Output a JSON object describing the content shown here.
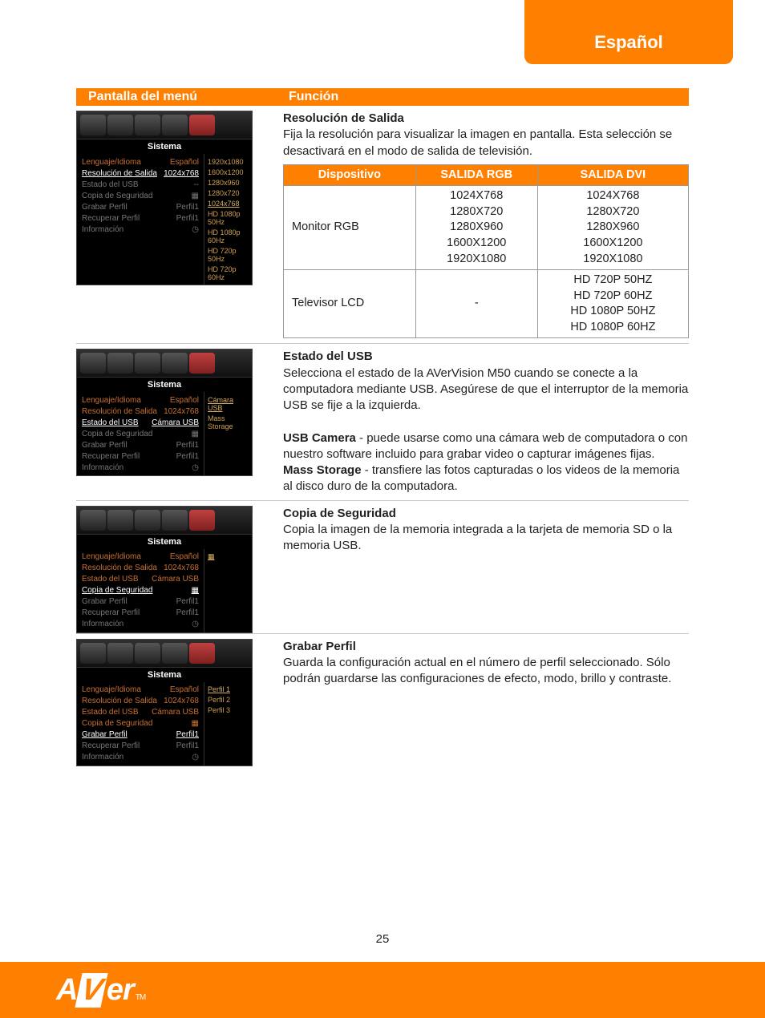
{
  "topTab": "Español",
  "header": {
    "left": "Pantalla del menú",
    "right": "Función"
  },
  "pageNumber": "25",
  "logo": {
    "a": "A",
    "v": "V",
    "er": "er",
    "tm": "TM"
  },
  "toolbarTitle": "Sistema",
  "menuItems": {
    "lang": {
      "label": "Lenguaje/Idioma",
      "value": "Español"
    },
    "res": {
      "label": "Resolución de Salida",
      "value": "1024x768"
    },
    "usb": {
      "label": "Estado del USB",
      "value_dash": "--",
      "value_cam": "Cámara USB"
    },
    "backup": {
      "label": "Copia de Seguridad",
      "icon": "▦"
    },
    "save": {
      "label": "Grabar Perfil",
      "value": "Perfil1"
    },
    "recall": {
      "label": "Recuperar Perfil",
      "value": "Perfil1"
    },
    "info": {
      "label": "Información",
      "value": "◷"
    }
  },
  "sublists": {
    "resolutions": [
      "1920x1080",
      "1600x1200",
      "1280x960",
      "1280x720",
      "1024x768",
      "HD 1080p 50Hz",
      "HD 1080p 60Hz",
      "HD 720p  50Hz",
      "HD 720p  60Hz"
    ],
    "usb": [
      "Cámara USB",
      "Mass Storage"
    ],
    "backup": [
      "▦",
      ""
    ],
    "profiles": [
      "Perfil 1",
      "Perfil 2",
      "Perfil 3"
    ]
  },
  "descriptions": {
    "res": {
      "title": "Resolución de Salida",
      "body": "Fija la resolución para visualizar la imagen en pantalla. Esta selección se desactivará en el modo de salida de televisión."
    },
    "usb": {
      "title": "Estado del USB",
      "p1": "Selecciona el estado de la AVerVision M50 cuando se conecte a la computadora mediante USB. Asegúrese de que el interruptor de la memoria USB se fije a la izquierda.",
      "camLabel": "USB Camera",
      "camText": " - puede usarse como una cámara web de computadora o con nuestro software incluido para grabar video o capturar imágenes fijas.",
      "massLabel": "Mass Storage",
      "massText": " - transfiere las fotos capturadas o los videos de la memoria al disco duro de la computadora."
    },
    "backup": {
      "title": "Copia de Seguridad",
      "body": "Copia la imagen de la memoria integrada a la tarjeta de memoria SD o la memoria USB."
    },
    "save": {
      "title": "Grabar Perfil",
      "body": "Guarda la configuración actual en el número de perfil seleccionado. Sólo podrán guardarse las configuraciones de efecto, modo, brillo y contraste."
    }
  },
  "resTable": {
    "headers": {
      "dev": "Dispositivo",
      "rgb": "SALIDA RGB",
      "dvi": "SALIDA DVI"
    },
    "rows": [
      {
        "dev": "Monitor RGB",
        "rgb": "1024X768\n1280X720\n1280X960\n1600X1200\n1920X1080",
        "dvi": "1024X768\n1280X720\n1280X960\n1600X1200\n1920X1080"
      },
      {
        "dev": "Televisor LCD",
        "rgb": "-",
        "dvi": "HD  720P 50HZ\nHD  720P 60HZ\nHD 1080P 50HZ\nHD 1080P 60HZ"
      }
    ]
  }
}
